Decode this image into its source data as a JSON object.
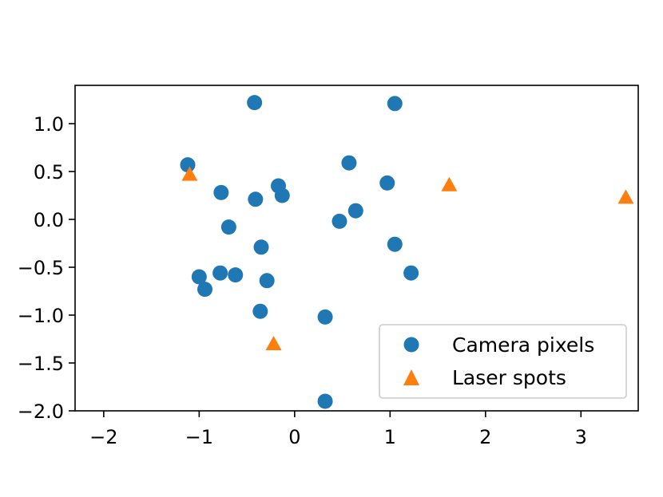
{
  "chart_data": {
    "type": "scatter",
    "title": "",
    "xlabel": "",
    "ylabel": "",
    "xlim": [
      -2.3,
      3.6
    ],
    "ylim": [
      -2.0,
      1.4
    ],
    "xticks": [
      -2,
      -1,
      0,
      1,
      2,
      3
    ],
    "xtick_labels": [
      "−2",
      "−1",
      "0",
      "1",
      "2",
      "3"
    ],
    "yticks": [
      -2.0,
      -1.5,
      -1.0,
      -0.5,
      0.0,
      0.5,
      1.0
    ],
    "ytick_labels": [
      "−2.0",
      "−1.5",
      "−1.0",
      "−0.5",
      "0.0",
      "0.5",
      "1.0"
    ],
    "grid": false,
    "legend_position": "lower-right",
    "series": [
      {
        "name": "Camera pixels",
        "marker": "circle",
        "color": "#1f77b4",
        "points": [
          [
            -0.42,
            1.22
          ],
          [
            1.05,
            1.21
          ],
          [
            -1.12,
            0.57
          ],
          [
            0.57,
            0.59
          ],
          [
            -0.77,
            0.28
          ],
          [
            -0.41,
            0.21
          ],
          [
            -0.17,
            0.35
          ],
          [
            -0.13,
            0.25
          ],
          [
            0.97,
            0.38
          ],
          [
            0.47,
            -0.02
          ],
          [
            0.64,
            0.09
          ],
          [
            -0.69,
            -0.08
          ],
          [
            -0.35,
            -0.29
          ],
          [
            1.05,
            -0.26
          ],
          [
            1.22,
            -0.56
          ],
          [
            -1.0,
            -0.6
          ],
          [
            -0.94,
            -0.73
          ],
          [
            -0.78,
            -0.56
          ],
          [
            -0.62,
            -0.58
          ],
          [
            -0.29,
            -0.64
          ],
          [
            -0.36,
            -0.96
          ],
          [
            0.32,
            -1.02
          ],
          [
            0.32,
            -1.9
          ]
        ]
      },
      {
        "name": "Laser spots",
        "marker": "triangle",
        "color": "#ff7f0e",
        "points": [
          [
            -1.1,
            0.47
          ],
          [
            1.62,
            0.36
          ],
          [
            3.47,
            0.23
          ],
          [
            -0.22,
            -1.3
          ]
        ]
      }
    ]
  }
}
